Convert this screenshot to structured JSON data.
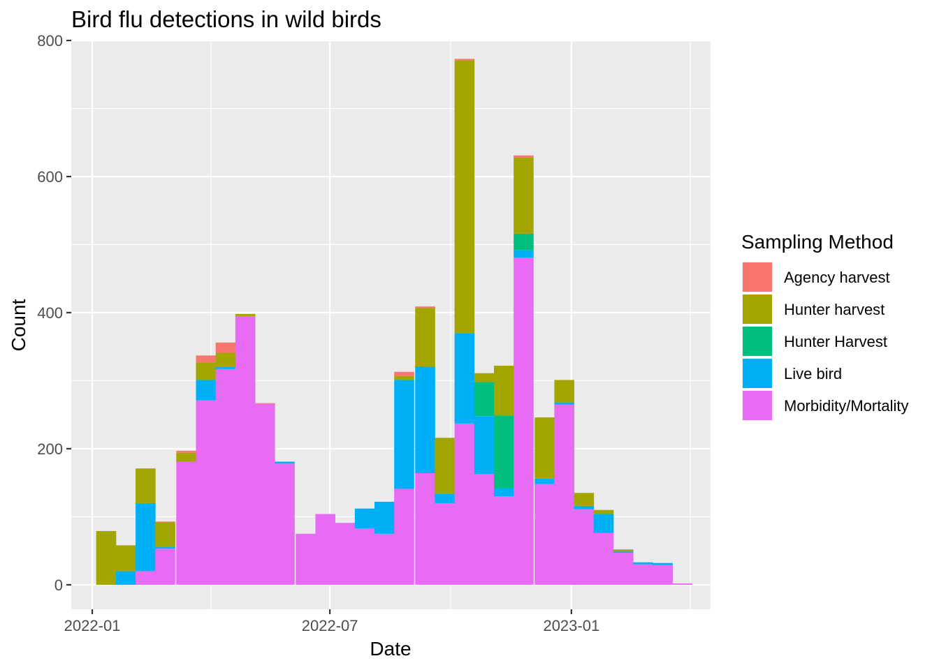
{
  "chart_data": {
    "type": "bar",
    "stacked": true,
    "title": "Bird flu detections in wild birds",
    "xlabel": "Date",
    "ylabel": "Count",
    "ylim": [
      -36,
      800
    ],
    "xlim": [
      "2021-12-16",
      "2023-04-17"
    ],
    "x_ticks": [
      {
        "date": "2022-01-01",
        "label": "2022-01"
      },
      {
        "date": "2022-07-01",
        "label": "2022-07"
      },
      {
        "date": "2023-01-01",
        "label": "2023-01"
      }
    ],
    "y_ticks": [
      0,
      200,
      400,
      600,
      800
    ],
    "panel_background": "#EBEBEB",
    "grid": true,
    "legend": {
      "title": "Sampling Method",
      "position": "right",
      "entries": [
        "Agency harvest",
        "Hunter harvest",
        "Hunter Harvest",
        "Live bird",
        "Morbidity/Mortality"
      ]
    },
    "series": [
      {
        "name": "Morbidity/Mortality",
        "color": "#E76BF3",
        "values": [
          0,
          0,
          20,
          53,
          181,
          271,
          317,
          395,
          266,
          178,
          75,
          104,
          91,
          83,
          75,
          141,
          164,
          120,
          237,
          163,
          130,
          481,
          148,
          265,
          111,
          76,
          47,
          30,
          29,
          2
        ]
      },
      {
        "name": "Live bird",
        "color": "#00B0F6",
        "values": [
          0,
          20,
          100,
          3,
          0,
          30,
          3,
          0,
          0,
          3,
          0,
          0,
          0,
          29,
          47,
          160,
          157,
          14,
          133,
          85,
          12,
          11,
          8,
          3,
          5,
          28,
          2,
          3,
          3,
          0
        ]
      },
      {
        "name": "Hunter Harvest",
        "color": "#00BF7D",
        "values": [
          0,
          0,
          0,
          0,
          0,
          0,
          0,
          0,
          0,
          0,
          0,
          0,
          0,
          0,
          0,
          0,
          0,
          0,
          0,
          50,
          107,
          24,
          0,
          0,
          0,
          0,
          0,
          0,
          0,
          0
        ]
      },
      {
        "name": "Hunter harvest",
        "color": "#A3A500",
        "values": [
          79,
          38,
          51,
          36,
          13,
          26,
          21,
          3,
          0,
          0,
          0,
          0,
          0,
          0,
          0,
          6,
          86,
          82,
          401,
          13,
          73,
          112,
          90,
          33,
          19,
          6,
          3,
          0,
          0,
          0
        ]
      },
      {
        "name": "Agency harvest",
        "color": "#F8766D",
        "values": [
          0,
          0,
          0,
          1,
          3,
          10,
          15,
          0,
          1,
          0,
          0,
          0,
          0,
          0,
          0,
          6,
          2,
          0,
          2,
          0,
          0,
          3,
          0,
          0,
          0,
          0,
          0,
          0,
          0,
          0
        ]
      }
    ],
    "bins_note_removed": true,
    "bin_dates": [
      "2022-01-04",
      "2022-01-19",
      "2022-02-03",
      "2022-02-18",
      "2022-03-06",
      "2022-03-21",
      "2022-04-05",
      "2022-04-20",
      "2022-05-05",
      "2022-05-20",
      "2022-06-05",
      "2022-06-20",
      "2022-07-05",
      "2022-07-20",
      "2022-08-04",
      "2022-08-19",
      "2022-09-04",
      "2022-09-19",
      "2022-10-04",
      "2022-10-19",
      "2022-11-03",
      "2022-11-18",
      "2022-12-04",
      "2022-12-19",
      "2023-01-03",
      "2023-01-18",
      "2023-02-02",
      "2023-02-17",
      "2023-03-04",
      "2023-03-19"
    ]
  }
}
